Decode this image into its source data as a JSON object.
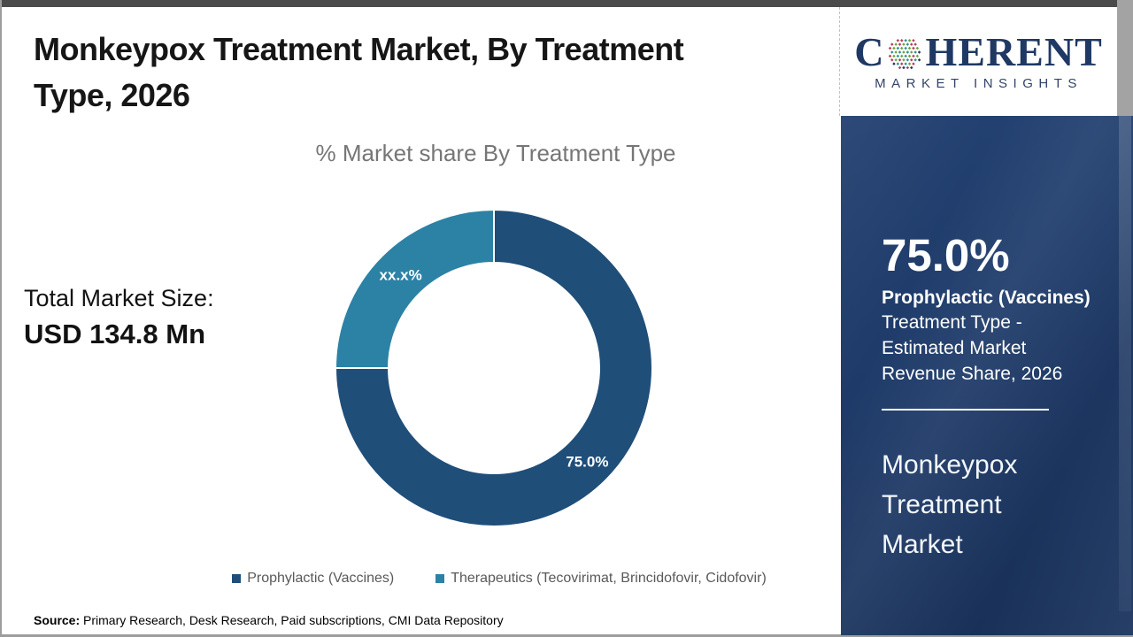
{
  "page": {
    "title": "Monkeypox Treatment Market, By Treatment Type, 2026",
    "total_label": "Total Market Size:",
    "total_value": "USD 134.8 Mn",
    "source_label": "Source:",
    "source_text": " Primary Research, Desk Research, Paid subscriptions, CMI Data Repository"
  },
  "chart_data": {
    "type": "pie",
    "subtype": "donut",
    "title": "% Market share By Treatment Type",
    "categories": [
      "Prophylactic (Vaccines)",
      "Therapeutics (Tecovirimat, Brincidofovir, Cidofovir)"
    ],
    "values": [
      75.0,
      25.0
    ],
    "slice_labels": [
      "75.0%",
      "xx.x%"
    ],
    "colors": [
      "#1f4e79",
      "#2b82a5"
    ],
    "start_angle_deg": 0,
    "direction": "clockwise",
    "legend_position": "bottom",
    "geometry": {
      "outer_radius": 179,
      "inner_radius": 119,
      "label_radius": 149
    }
  },
  "sidebar": {
    "stat_value": "75.0%",
    "stat_label_bold": "Prophylactic (Vaccines)",
    "stat_label_rest": "Treatment Type - Estimated Market Revenue Share, 2026",
    "market_name": "Monkeypox Treatment Market",
    "bg_color": "#1e3a68"
  },
  "logo": {
    "part1": "C",
    "part2": "HERENT",
    "subtitle": "MARKET INSIGHTS",
    "text_color": "#1f3864",
    "dot_colors": [
      "#2a9091",
      "#6aa33c",
      "#b93b58",
      "#1f3864"
    ]
  }
}
